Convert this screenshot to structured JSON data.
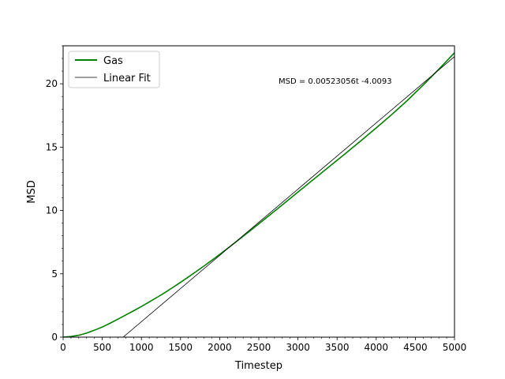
{
  "chart_data": {
    "type": "line",
    "title": "",
    "xlabel": "Timestep",
    "ylabel": "MSD",
    "xlim": [
      0,
      5000
    ],
    "ylim": [
      0,
      23
    ],
    "x_ticks": [
      0,
      500,
      1000,
      1500,
      2000,
      2500,
      3000,
      3500,
      4000,
      4500,
      5000
    ],
    "y_ticks": [
      0,
      5,
      10,
      15,
      20
    ],
    "x_minor_step": 100,
    "y_minor_step": 1,
    "grid": false,
    "legend_position": "top-left",
    "annotation": "MSD = 0.00523056t -4.0093",
    "series": [
      {
        "name": "Gas",
        "color": "#008000",
        "style": "solid-thick",
        "x": [
          0,
          100,
          200,
          300,
          400,
          500,
          600,
          700,
          800,
          900,
          1000,
          1100,
          1200,
          1300,
          1400,
          1500,
          1600,
          1700,
          1800,
          1900,
          2000,
          2200,
          2400,
          2600,
          2800,
          3000,
          3200,
          3400,
          3600,
          3800,
          4000,
          4200,
          4400,
          4600,
          4800,
          5000
        ],
        "y": [
          0,
          0.05,
          0.15,
          0.32,
          0.55,
          0.8,
          1.1,
          1.42,
          1.75,
          2.08,
          2.42,
          2.78,
          3.14,
          3.52,
          3.92,
          4.33,
          4.75,
          5.18,
          5.62,
          6.07,
          6.53,
          7.48,
          8.45,
          9.44,
          10.44,
          11.45,
          12.46,
          13.46,
          14.46,
          15.48,
          16.52,
          17.58,
          18.7,
          19.9,
          21.15,
          22.45
        ]
      },
      {
        "name": "Linear Fit",
        "color": "#000000",
        "style": "solid-thin",
        "x": [
          766.5,
          5000
        ],
        "y": [
          0,
          22.144
        ]
      }
    ]
  }
}
